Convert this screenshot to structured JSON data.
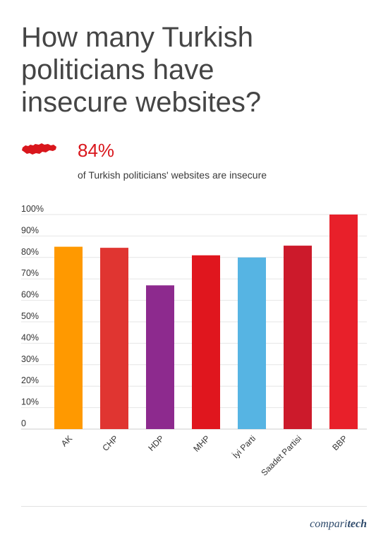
{
  "title": "How many Turkish\npoliticians have\ninsecure websites?",
  "stat": {
    "value": "84%",
    "label": "of Turkish politicians' websites are insecure"
  },
  "brand": {
    "part1": "compari",
    "part2": "tech"
  },
  "colors": {
    "accent": "#d9161c",
    "grid": "#e6e6e6"
  },
  "chart_data": {
    "type": "bar",
    "categories": [
      "AK",
      "CHP",
      "HDP",
      "MHP",
      "İyi Parti",
      "Saadet Partisi",
      "BBP"
    ],
    "values": [
      85,
      84.5,
      67,
      81,
      80,
      85.5,
      100
    ],
    "colors": [
      "#ff9900",
      "#e03531",
      "#8d2a8e",
      "#e0161e",
      "#56b4e3",
      "#cc1a2b",
      "#e8202a"
    ],
    "yticks": [
      "0",
      "10%",
      "20%",
      "30%",
      "40%",
      "50%",
      "60%",
      "70%",
      "80%",
      "90%",
      "100%"
    ],
    "ylim": [
      0,
      100
    ],
    "grid": true
  }
}
